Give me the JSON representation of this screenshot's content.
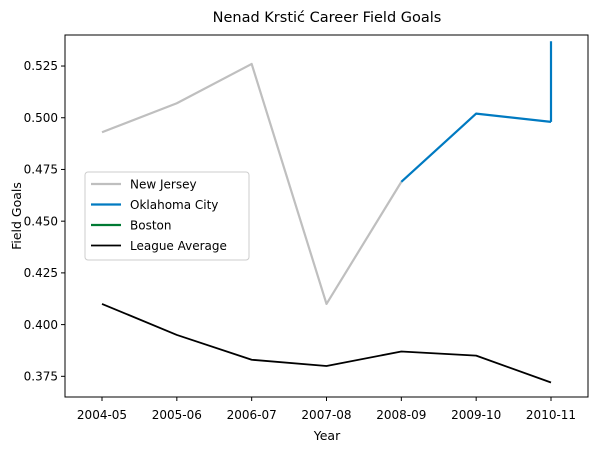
{
  "chart_data": {
    "type": "line",
    "title": "Nenad Krstić Career Field Goals",
    "xlabel": "Year",
    "ylabel": "Field Goals",
    "categories": [
      "2004-05",
      "2005-06",
      "2006-07",
      "2007-08",
      "2008-09",
      "2009-10",
      "2010-11"
    ],
    "ylim": [
      0.365,
      0.54
    ],
    "yticks": [
      0.375,
      0.4,
      0.425,
      0.45,
      0.475,
      0.5,
      0.525
    ],
    "ytick_labels": [
      "0.375",
      "0.400",
      "0.425",
      "0.450",
      "0.475",
      "0.500",
      "0.525"
    ],
    "grid": false,
    "legend_position": "center-left",
    "series": [
      {
        "name": "New Jersey",
        "color": "#bfbfbf",
        "points": [
          {
            "x": "2004-05",
            "y": 0.493
          },
          {
            "x": "2005-06",
            "y": 0.507
          },
          {
            "x": "2006-07",
            "y": 0.526
          },
          {
            "x": "2007-08",
            "y": 0.41
          },
          {
            "x": "2008-09",
            "y": 0.469
          }
        ]
      },
      {
        "name": "Oklahoma City",
        "color": "#007ac1",
        "points": [
          {
            "x": "2008-09",
            "y": 0.469
          },
          {
            "x": "2009-10",
            "y": 0.502
          },
          {
            "x": "2010-11",
            "y": 0.498
          }
        ]
      },
      {
        "name": "Boston",
        "color": "#007a33",
        "points": [
          {
            "x": "2010-11",
            "y": 0.537
          },
          {
            "x": "2010-11",
            "y": 0.537
          }
        ]
      },
      {
        "name": "League Average",
        "color": "#000000",
        "points": [
          {
            "x": "2004-05",
            "y": 0.41
          },
          {
            "x": "2005-06",
            "y": 0.395
          },
          {
            "x": "2006-07",
            "y": 0.383
          },
          {
            "x": "2007-08",
            "y": 0.38
          },
          {
            "x": "2008-09",
            "y": 0.387
          },
          {
            "x": "2009-10",
            "y": 0.385
          },
          {
            "x": "2010-11",
            "y": 0.372
          }
        ]
      }
    ],
    "connectors": [
      {
        "series": "Oklahoma City",
        "color": "#007ac1",
        "from": {
          "x": "2010-11",
          "y": 0.498
        },
        "to": {
          "x": "2010-11",
          "y": 0.537
        }
      }
    ]
  }
}
